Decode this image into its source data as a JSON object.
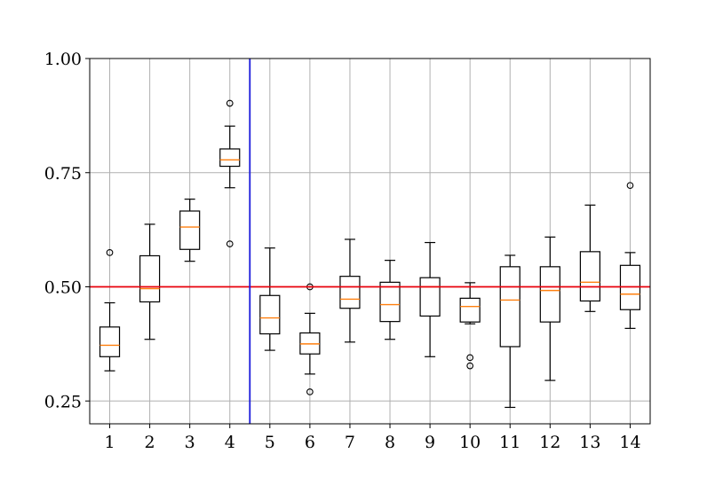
{
  "chart_data": {
    "type": "box",
    "title": "",
    "xlabel": "",
    "ylabel": "",
    "ylim": [
      0.2,
      1.0
    ],
    "yticks": [
      0.25,
      0.5,
      0.75,
      1.0
    ],
    "ytick_labels": [
      "0.25",
      "0.50",
      "0.75",
      "1.00"
    ],
    "categories": [
      "1",
      "2",
      "3",
      "4",
      "5",
      "6",
      "7",
      "8",
      "9",
      "10",
      "11",
      "12",
      "13",
      "14"
    ],
    "grid": true,
    "boxes": [
      {
        "whislo": 0.316,
        "q1": 0.347,
        "med": 0.372,
        "q3": 0.412,
        "whishi": 0.465,
        "fliers": [
          0.575
        ]
      },
      {
        "whislo": 0.385,
        "q1": 0.467,
        "med": 0.496,
        "q3": 0.568,
        "whishi": 0.637,
        "fliers": []
      },
      {
        "whislo": 0.556,
        "q1": 0.582,
        "med": 0.631,
        "q3": 0.666,
        "whishi": 0.692,
        "fliers": []
      },
      {
        "whislo": 0.717,
        "q1": 0.764,
        "med": 0.778,
        "q3": 0.802,
        "whishi": 0.852,
        "fliers": [
          0.902,
          0.594
        ]
      },
      {
        "whislo": 0.361,
        "q1": 0.397,
        "med": 0.432,
        "q3": 0.481,
        "whishi": 0.585,
        "fliers": []
      },
      {
        "whislo": 0.309,
        "q1": 0.353,
        "med": 0.375,
        "q3": 0.399,
        "whishi": 0.442,
        "fliers": [
          0.5,
          0.27
        ]
      },
      {
        "whislo": 0.379,
        "q1": 0.453,
        "med": 0.473,
        "q3": 0.523,
        "whishi": 0.604,
        "fliers": []
      },
      {
        "whislo": 0.385,
        "q1": 0.424,
        "med": 0.461,
        "q3": 0.51,
        "whishi": 0.558,
        "fliers": []
      },
      {
        "whislo": 0.347,
        "q1": 0.436,
        "med": 0.5,
        "q3": 0.52,
        "whishi": 0.597,
        "fliers": []
      },
      {
        "whislo": 0.419,
        "q1": 0.423,
        "med": 0.457,
        "q3": 0.475,
        "whishi": 0.509,
        "fliers": [
          0.345,
          0.327
        ]
      },
      {
        "whislo": 0.236,
        "q1": 0.369,
        "med": 0.471,
        "q3": 0.544,
        "whishi": 0.569,
        "fliers": []
      },
      {
        "whislo": 0.295,
        "q1": 0.423,
        "med": 0.492,
        "q3": 0.544,
        "whishi": 0.609,
        "fliers": []
      },
      {
        "whislo": 0.446,
        "q1": 0.469,
        "med": 0.51,
        "q3": 0.577,
        "whishi": 0.679,
        "fliers": []
      },
      {
        "whislo": 0.409,
        "q1": 0.45,
        "med": 0.484,
        "q3": 0.547,
        "whishi": 0.575,
        "fliers": [
          0.722
        ]
      }
    ],
    "hlines": [
      {
        "y": 0.5,
        "color": "#e8000b"
      }
    ],
    "vlines": [
      {
        "x": 4.5,
        "color": "#1a1adb"
      }
    ],
    "colors": {
      "median": "#ff7f0e",
      "box": "#000000",
      "grid": "#b0b0b0",
      "hline": "#e8000b",
      "vline": "#1a1adb"
    }
  }
}
